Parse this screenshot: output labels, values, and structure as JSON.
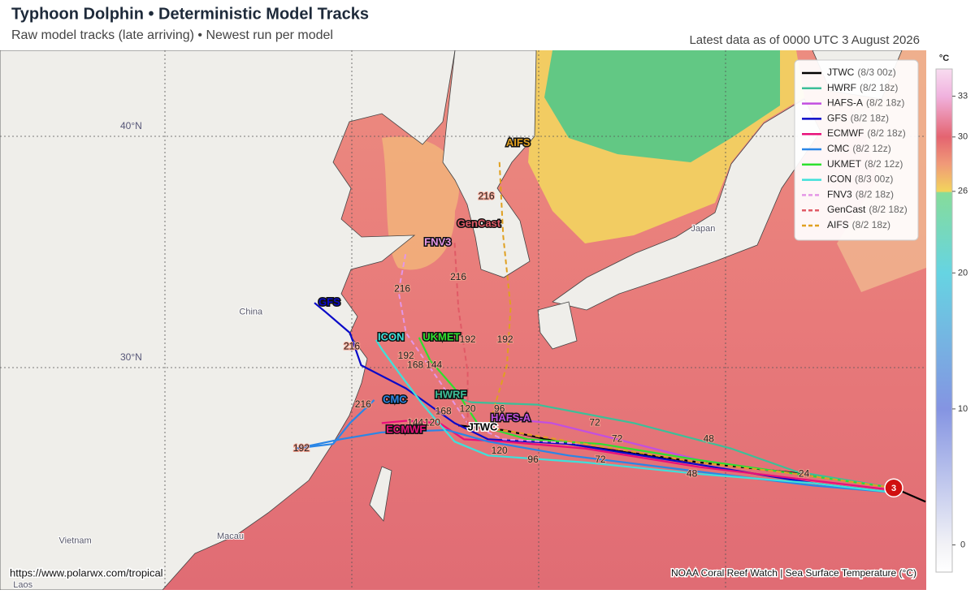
{
  "header": {
    "title": "Typhoon Dolphin • Deterministic Model Tracks",
    "subtitle": "Raw model tracks (late arriving) • Newest run per model",
    "timestamp": "Latest data as of 0000 UTC 3 August 2026"
  },
  "map": {
    "lat_lines": [
      {
        "value": 30,
        "label": "30°N"
      },
      {
        "value": 40,
        "label": "40°N"
      }
    ],
    "lon_lines": [
      110,
      120,
      130,
      140
    ],
    "places": [
      {
        "label": "China",
        "lat": 32.4,
        "lon": 114.6
      },
      {
        "label": "Japan",
        "lat": 36.0,
        "lon": 138.8
      },
      {
        "label": "Vietnam",
        "lat": 22.5,
        "lon": 105.2
      },
      {
        "label": "Macau",
        "lat": 22.7,
        "lon": 113.5
      },
      {
        "label": "Laos",
        "lat": 20.6,
        "lon": 102.4
      }
    ],
    "storm": {
      "label": "3",
      "lat": 24.8,
      "lon": 149.0,
      "color": "#d01010"
    }
  },
  "tracks": [
    {
      "name": "JTWC",
      "run": "(8/3 00z)",
      "color": "#000000",
      "dashed": false,
      "lat": [
        24.2,
        24.8,
        25.4,
        25.9,
        26.7,
        27.3,
        27.5
      ],
      "lon": [
        150.7,
        149.0,
        144.2,
        138.6,
        131.6,
        128.1,
        125.7
      ],
      "label_pos": {
        "lat": 27.4,
        "lon": 127.0
      },
      "hours": [
        {
          "text": "24",
          "lat": 25.4,
          "lon": 144.2
        },
        {
          "text": "72",
          "lat": 26.9,
          "lon": 134.2
        }
      ]
    },
    {
      "name": "HWRF",
      "run": "(8/2 18z)",
      "color": "#3cbf98",
      "dashed": false,
      "lat": [
        24.8,
        25.5,
        26.5,
        27.6,
        28.4,
        28.5,
        28.9
      ],
      "lon": [
        149.0,
        143.8,
        140.3,
        135.1,
        129.9,
        126.4,
        124.9
      ],
      "label_pos": {
        "lat": 28.8,
        "lon": 125.3
      },
      "hours": [
        {
          "text": "168",
          "lat": 28.1,
          "lon": 124.9
        },
        {
          "text": "120",
          "lat": 28.2,
          "lon": 126.2
        },
        {
          "text": "96",
          "lat": 28.2,
          "lon": 127.9
        },
        {
          "text": "48",
          "lat": 26.9,
          "lon": 139.1
        }
      ]
    },
    {
      "name": "HAFS-A",
      "run": "(8/2 18z)",
      "color": "#c24fe0",
      "dashed": false,
      "lat": [
        24.8,
        25.4,
        26.0,
        26.9,
        27.6,
        27.8
      ],
      "lon": [
        149.0,
        143.8,
        138.6,
        134.2,
        130.7,
        128.1
      ],
      "label_pos": {
        "lat": 27.8,
        "lon": 128.5
      },
      "hours": [
        {
          "text": "72",
          "lat": 27.6,
          "lon": 133.0
        }
      ]
    },
    {
      "name": "GFS",
      "run": "(8/2 18z)",
      "color": "#0a0ac8",
      "dashed": false,
      "lat": [
        24.6,
        25.0,
        25.8,
        26.7,
        26.9,
        27.6,
        29.1,
        30.1,
        31.5,
        32.4,
        32.8
      ],
      "lon": [
        149.0,
        144.7,
        138.6,
        131.6,
        127.3,
        125.5,
        122.9,
        120.5,
        119.9,
        118.6,
        118.0
      ],
      "label_pos": {
        "lat": 32.8,
        "lon": 118.8
      },
      "hours": [
        {
          "text": "216",
          "lat": 30.9,
          "lon": 120.0
        }
      ]
    },
    {
      "name": "ECMWF",
      "run": "(8/2 18z)",
      "color": "#e8107a",
      "dashed": false,
      "lat": [
        24.7,
        25.2,
        25.7,
        26.5,
        26.8,
        26.9,
        27.6,
        27.7,
        27.6
      ],
      "lon": [
        149.0,
        143.8,
        138.6,
        132.5,
        128.1,
        126.0,
        124.7,
        122.9,
        121.6
      ],
      "label_pos": {
        "lat": 27.3,
        "lon": 122.9
      },
      "hours": [
        {
          "text": "144",
          "lat": 27.6,
          "lon": 123.4
        },
        {
          "text": "120",
          "lat": 27.6,
          "lon": 124.3
        }
      ]
    },
    {
      "name": "CMC",
      "run": "(8/2 12z)",
      "color": "#2a86e6",
      "dashed": false,
      "lat": [
        24.6,
        24.9,
        25.5,
        26.2,
        26.8,
        27.3,
        27.2,
        26.9,
        26.5,
        26.7,
        27.6,
        28.6
      ],
      "lon": [
        149.0,
        144.7,
        138.6,
        131.6,
        127.3,
        125.1,
        121.6,
        119.4,
        117.0,
        119.0,
        119.9,
        121.2
      ],
      "label_pos": {
        "lat": 28.6,
        "lon": 122.3
      },
      "hours": [
        {
          "text": "192",
          "lat": 26.5,
          "lon": 117.3
        },
        {
          "text": "216",
          "lat": 28.4,
          "lon": 120.6
        }
      ]
    },
    {
      "name": "UKMET",
      "run": "(8/2 12z)",
      "color": "#2ee02e",
      "dashed": false,
      "lat": [
        24.8,
        25.4,
        26.0,
        26.7,
        26.9,
        27.5,
        29.1,
        30.3,
        31.3
      ],
      "lon": [
        149.0,
        143.8,
        138.6,
        133.3,
        129.4,
        126.8,
        125.5,
        124.2,
        123.6
      ],
      "label_pos": {
        "lat": 31.3,
        "lon": 124.8
      },
      "hours": [
        {
          "text": "144",
          "lat": 30.1,
          "lon": 124.4
        },
        {
          "text": "192",
          "lat": 31.2,
          "lon": 126.2
        }
      ]
    },
    {
      "name": "ICON",
      "run": "(8/3 00z)",
      "color": "#3fe0da",
      "dashed": false,
      "lat": [
        24.6,
        25.0,
        25.4,
        25.9,
        26.2,
        26.8,
        28.4,
        29.8,
        30.8,
        31.2
      ],
      "lon": [
        149.0,
        144.7,
        138.6,
        132.5,
        127.3,
        125.5,
        123.8,
        122.5,
        121.6,
        121.3
      ],
      "label_pos": {
        "lat": 31.3,
        "lon": 122.1
      },
      "hours": [
        {
          "text": "192",
          "lat": 30.5,
          "lon": 122.9
        },
        {
          "text": "168",
          "lat": 30.1,
          "lon": 123.4
        },
        {
          "text": "120",
          "lat": 26.4,
          "lon": 127.9
        },
        {
          "text": "96",
          "lat": 26.0,
          "lon": 129.7
        },
        {
          "text": "72",
          "lat": 26.0,
          "lon": 133.3
        },
        {
          "text": "48",
          "lat": 25.4,
          "lon": 138.2
        }
      ]
    },
    {
      "name": "FNV3",
      "run": "(8/2 18z)",
      "color": "#e496e6",
      "dashed": true,
      "lat": [
        24.8,
        25.4,
        25.9,
        26.7,
        26.9,
        27.6,
        29.4,
        31.5,
        33.3,
        35.0
      ],
      "lon": [
        149.0,
        143.8,
        138.6,
        132.5,
        128.1,
        126.2,
        124.7,
        122.9,
        122.5,
        122.9
      ],
      "label_pos": {
        "lat": 35.4,
        "lon": 124.6
      },
      "hours": [
        {
          "text": "216",
          "lat": 33.4,
          "lon": 122.7
        }
      ]
    },
    {
      "name": "GenCast",
      "run": "(8/2 18z)",
      "color": "#e05a66",
      "dashed": true,
      "lat": [
        24.8,
        25.4,
        25.9,
        26.7,
        27.5,
        29.8,
        32.6,
        35.4
      ],
      "lon": [
        149.0,
        143.8,
        138.6,
        132.5,
        126.2,
        126.2,
        125.7,
        125.5
      ],
      "label_pos": {
        "lat": 36.2,
        "lon": 126.8
      },
      "hours": [
        {
          "text": "216",
          "lat": 33.9,
          "lon": 125.7
        }
      ]
    },
    {
      "name": "AIFS",
      "run": "(8/2 18z)",
      "color": "#e0a020",
      "dashed": true,
      "lat": [
        24.8,
        25.4,
        25.9,
        26.7,
        27.4,
        30.1,
        32.6,
        35.7,
        38.9
      ],
      "lon": [
        149.0,
        143.8,
        138.6,
        132.5,
        127.3,
        128.3,
        128.5,
        128.1,
        127.9
      ],
      "label_pos": {
        "lat": 39.7,
        "lon": 128.9
      },
      "hours": [
        {
          "text": "216",
          "lat": 37.4,
          "lon": 127.2
        },
        {
          "text": "192",
          "lat": 31.2,
          "lon": 128.2
        }
      ]
    }
  ],
  "colorbar": {
    "unit": "°C",
    "lim": [
      -2,
      35
    ],
    "ticks": [
      0,
      10,
      20,
      26,
      30,
      33
    ],
    "stops": [
      {
        "value": -2,
        "color": "#ffffff"
      },
      {
        "value": 0,
        "color": "#f2f2f6"
      },
      {
        "value": 10,
        "color": "#8494e2"
      },
      {
        "value": 20,
        "color": "#66d4e2"
      },
      {
        "value": 25.9,
        "color": "#86dc9a"
      },
      {
        "value": 26,
        "color": "#f2d45c"
      },
      {
        "value": 28,
        "color": "#f09a78"
      },
      {
        "value": 30,
        "color": "#e46470"
      },
      {
        "value": 33,
        "color": "#f0b2de"
      },
      {
        "value": 35,
        "color": "#f8dcf0"
      }
    ]
  },
  "footer": {
    "url": "https://www.polarwx.com/tropical",
    "source": "NOAA Coral Reef Watch | Sea Surface Temperature (°C)"
  }
}
